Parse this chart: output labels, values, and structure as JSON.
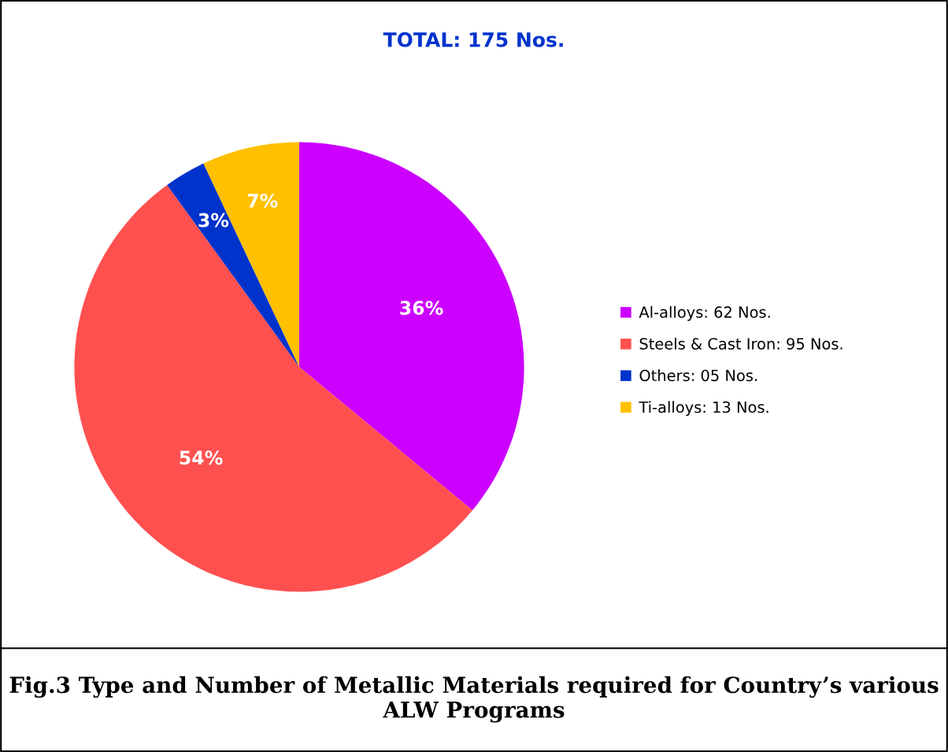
{
  "chart_data": {
    "type": "pie",
    "title": "TOTAL: 175 Nos.",
    "categories": [
      "Al-alloys: 62 Nos.",
      "Steels & Cast Iron: 95 Nos.",
      "Others: 05 Nos.",
      "Ti-alloys: 13 Nos."
    ],
    "values": [
      36,
      54,
      3,
      7
    ],
    "value_labels": [
      "36%",
      "54%",
      "3%",
      "7%"
    ],
    "colors": [
      "#cc00ff",
      "#ff5050",
      "#0033cc",
      "#ffc000"
    ],
    "legend": "right",
    "annotations": [
      "Fig.3 Type and Number of Metallic Materials required for Country’s various ALW Programs"
    ]
  }
}
